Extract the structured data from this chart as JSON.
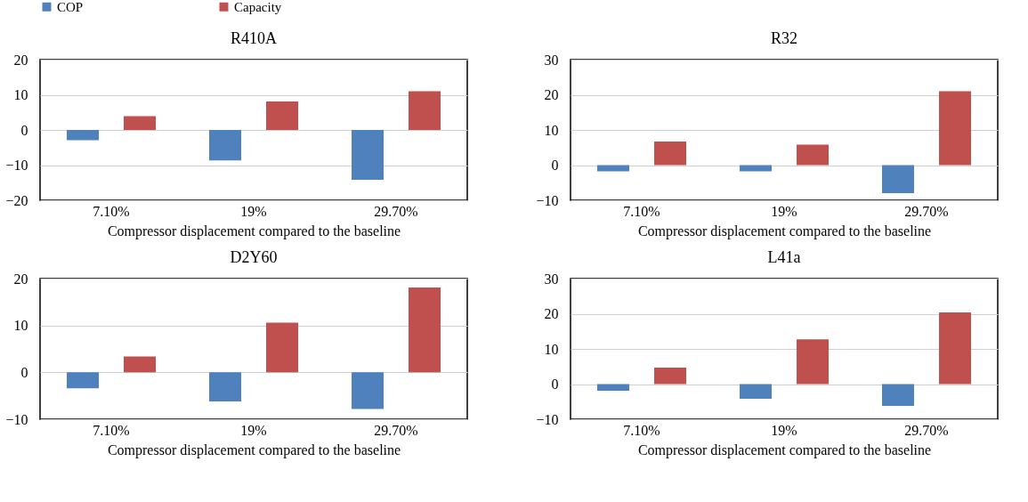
{
  "chart_data": [
    {
      "type": "bar",
      "title": "R410A",
      "xlabel": "Compressor displacement compared to the baseline",
      "categories": [
        "7.10%",
        "19%",
        "29.70%"
      ],
      "series": [
        {
          "name": "COP",
          "color": "#4f81bd",
          "values": [
            -2.9,
            -8.7,
            -14.2
          ]
        },
        {
          "name": "Capacity",
          "color": "#c0504d",
          "values": [
            3.9,
            8.1,
            11.0
          ]
        }
      ],
      "ylim": [
        -20,
        20
      ],
      "yticks": [
        -20,
        -10,
        0,
        10,
        20
      ],
      "grid": "y",
      "legend": "top"
    },
    {
      "type": "bar",
      "title": "R32",
      "xlabel": "Compressor displacement compared to the baseline",
      "categories": [
        "7.10%",
        "19%",
        "29.70%"
      ],
      "series": [
        {
          "name": "COP",
          "color": "#4f81bd",
          "values": [
            -1.8,
            -1.8,
            -8.0
          ]
        },
        {
          "name": "Capacity",
          "color": "#c0504d",
          "values": [
            6.7,
            5.8,
            21.0
          ]
        }
      ],
      "ylim": [
        -10,
        30
      ],
      "yticks": [
        -10,
        0,
        10,
        20,
        30
      ],
      "grid": "y",
      "legend": "top"
    },
    {
      "type": "bar",
      "title": "D2Y60",
      "xlabel": "Compressor displacement compared to the baseline",
      "categories": [
        "7.10%",
        "19%",
        "29.70%"
      ],
      "series": [
        {
          "name": "COP",
          "color": "#4f81bd",
          "values": [
            -3.4,
            -6.2,
            -7.8
          ]
        },
        {
          "name": "Capacity",
          "color": "#c0504d",
          "values": [
            3.4,
            10.6,
            18.1
          ]
        }
      ],
      "ylim": [
        -10,
        20
      ],
      "yticks": [
        -10,
        0,
        10,
        20
      ],
      "grid": "y",
      "legend": "top"
    },
    {
      "type": "bar",
      "title": "L41a",
      "xlabel": "Compressor displacement compared to the baseline",
      "categories": [
        "7.10%",
        "19%",
        "29.70%"
      ],
      "series": [
        {
          "name": "COP",
          "color": "#4f81bd",
          "values": [
            -1.9,
            -4.2,
            -6.2
          ]
        },
        {
          "name": "Capacity",
          "color": "#c0504d",
          "values": [
            4.7,
            12.7,
            20.4
          ]
        }
      ],
      "ylim": [
        -10,
        30
      ],
      "yticks": [
        -10,
        0,
        10,
        20,
        30
      ],
      "grid": "y",
      "legend": "top"
    }
  ]
}
